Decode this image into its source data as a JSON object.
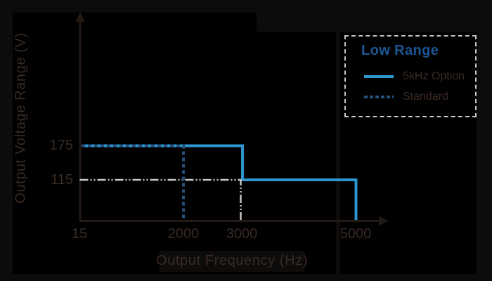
{
  "colors": {
    "background": "#000000",
    "margin_shade": "#0d0c0b",
    "axis": "#241a15",
    "text_dark": "#382b24",
    "solid_line": "#2d96cf",
    "dashed_line": "#24527e",
    "guide_line": "#c8c6c3",
    "legend_title": "#1b5795",
    "legend_border": "#c9c7c5"
  },
  "axes": {
    "x_title": "Output Frequency (Hz)",
    "y_title": "Output Voltage Range (V)",
    "x_tick_labels": [
      "15",
      "2000",
      "3000",
      "5000"
    ],
    "y_tick_labels": [
      "175",
      "115"
    ]
  },
  "legend": {
    "title": "Low Range",
    "items": [
      {
        "label": "5kHz Option",
        "style": "solid"
      },
      {
        "label": "Standard",
        "style": "dashed"
      }
    ]
  },
  "chart_data": {
    "type": "line",
    "subtype": "step",
    "title": "",
    "xlabel": "Output Frequency (Hz)",
    "ylabel": "Output Voltage Range (V)",
    "x_ticks": [
      15,
      2000,
      3000,
      5000
    ],
    "y_ticks": [
      175,
      115
    ],
    "axis_style": "arrow axes, schematic non-linear x spacing, no grid",
    "legend_position": "top-right",
    "legend_title": "Low Range",
    "series": [
      {
        "name": "5kHz Option",
        "style": "solid",
        "color": "#2d96cf",
        "stroke_width": 4,
        "points": [
          [
            15,
            175
          ],
          [
            3000,
            175
          ],
          [
            3000,
            115
          ],
          [
            5000,
            115
          ],
          [
            5000,
            0
          ]
        ]
      },
      {
        "name": "115 V guide",
        "style": "dash-dot-dot",
        "color": "#c8c6c3",
        "stroke_width": 2.5,
        "x_offset": -2.5,
        "points": [
          [
            15,
            115
          ],
          [
            3000,
            115
          ],
          [
            3000,
            0
          ]
        ]
      },
      {
        "name": "Standard",
        "style": "dashed",
        "color": "#24527e",
        "stroke_width": 4,
        "points": [
          [
            15,
            175
          ],
          [
            2000,
            175
          ],
          [
            2000,
            0
          ]
        ]
      }
    ]
  }
}
